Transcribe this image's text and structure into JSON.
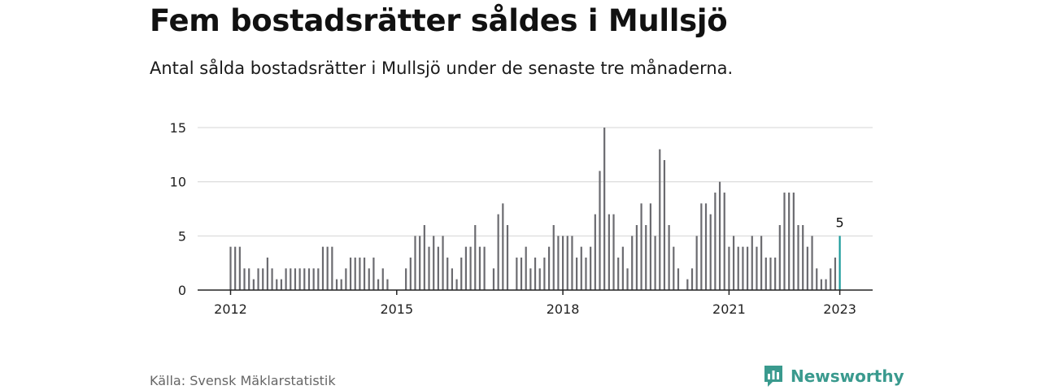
{
  "header": {
    "title": "Fem bostadsrätter såldes i Mullsjö",
    "subtitle": "Antal sålda bostadsrätter i Mullsjö under de senaste tre månaderna."
  },
  "footer": {
    "source": "Källa: Svensk Mäklarstatistik",
    "brand": "Newsworthy"
  },
  "colors": {
    "bar": "#6b6b70",
    "highlight": "#1a9a9a",
    "grid": "#d4d4d4",
    "axis": "#222222",
    "brand": "#3a9a8e"
  },
  "icons": {
    "brand_logo": "bar-chart-speech-bubble-icon"
  },
  "chart_data": {
    "type": "bar",
    "xlabel": "",
    "ylabel": "",
    "ylim": [
      0,
      16
    ],
    "y_ticks": [
      0,
      5,
      10,
      15
    ],
    "x_ticks": [
      "2012",
      "2015",
      "2018",
      "2021",
      "2023"
    ],
    "grid": "horizontal",
    "start": "2012-01",
    "end": "2023-01",
    "values": [
      4,
      4,
      4,
      2,
      2,
      1,
      2,
      2,
      3,
      2,
      1,
      1,
      2,
      2,
      2,
      2,
      2,
      2,
      2,
      2,
      4,
      4,
      4,
      1,
      1,
      2,
      3,
      3,
      3,
      3,
      2,
      3,
      1,
      2,
      1,
      0,
      0,
      0,
      2,
      3,
      5,
      5,
      6,
      4,
      5,
      4,
      5,
      3,
      2,
      1,
      3,
      4,
      4,
      6,
      4,
      4,
      0,
      2,
      7,
      8,
      6,
      0,
      3,
      3,
      4,
      2,
      3,
      2,
      3,
      4,
      6,
      5,
      5,
      5,
      5,
      3,
      4,
      3,
      4,
      7,
      11,
      15,
      7,
      7,
      3,
      4,
      2,
      5,
      6,
      8,
      6,
      8,
      5,
      13,
      12,
      6,
      4,
      2,
      0,
      1,
      2,
      5,
      8,
      8,
      7,
      9,
      10,
      9,
      4,
      5,
      4,
      4,
      4,
      5,
      4,
      5,
      3,
      3,
      3,
      6,
      9,
      9,
      9,
      6,
      6,
      4,
      5,
      2,
      1,
      1,
      2,
      3,
      5
    ],
    "annotations": [
      {
        "label": "5",
        "target": "last"
      }
    ]
  }
}
